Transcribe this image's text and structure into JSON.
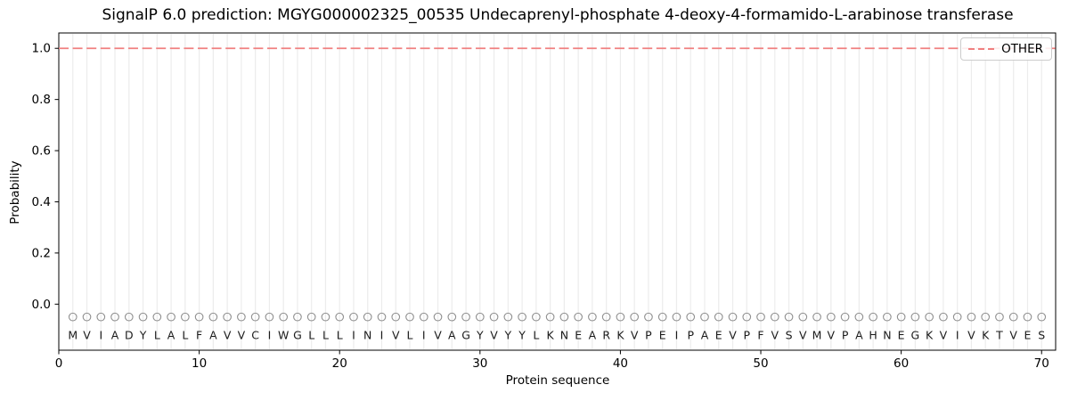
{
  "chart_data": {
    "type": "line",
    "title": "SignalP 6.0 prediction: MGYG000002325_00535 Undecaprenyl-phosphate 4-deoxy-4-formamido-L-arabinose transferase",
    "xlabel": "Protein sequence",
    "ylabel": "Probability",
    "xlim": [
      0,
      71
    ],
    "ylim": [
      -0.18,
      1.06
    ],
    "xticks": [
      0,
      10,
      20,
      30,
      40,
      50,
      60,
      70
    ],
    "yticks": [
      "0.0",
      "0.2",
      "0.4",
      "0.6",
      "0.8",
      "1.0"
    ],
    "grid": "vertical line at every residue position",
    "legend": {
      "position": "upper right",
      "entries": [
        {
          "label": "OTHER",
          "color": "#f08080",
          "style": "dashed"
        }
      ]
    },
    "series": [
      {
        "name": "OTHER",
        "style": "dashed",
        "color": "#f08080",
        "constant_value": 1.0,
        "x_start": 0,
        "x_end": 71
      }
    ],
    "sequence": "MVIADYLALFAVVCIWGLLLINIVLIVAGYVYYLKNEARKVPEIPAEVPFVSVMVPAHNEGKVIVKTVES",
    "sequence_positions_start": 1,
    "marker_y": -0.05,
    "colors": {
      "other_line": "#f08080",
      "gridline": "#ececec",
      "marker_stroke": "#909090",
      "letter": "#1a1a1a",
      "spine": "#000000",
      "tick_label": "#000000"
    }
  }
}
